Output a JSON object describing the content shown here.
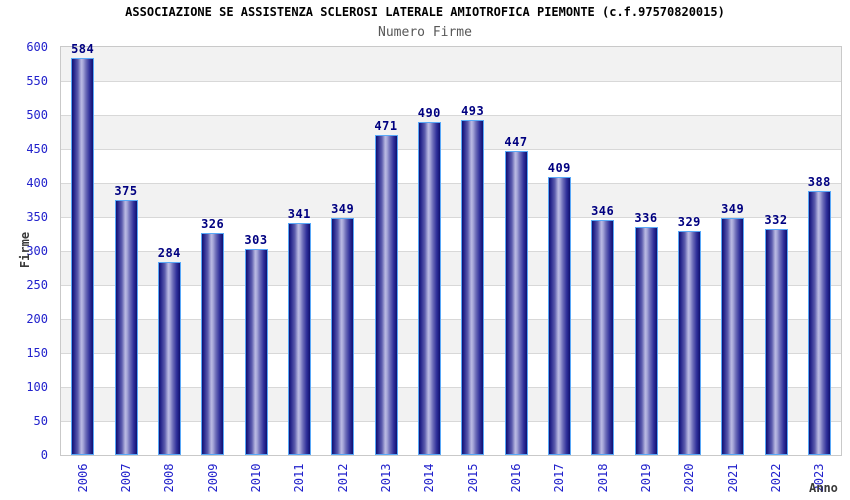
{
  "chart_data": {
    "type": "bar",
    "title": "ASSOCIAZIONE SE ASSISTENZA SCLEROSI LATERALE AMIOTROFICA PIEMONTE (c.f.97570820015)",
    "subtitle": "Numero Firme",
    "categories": [
      "2006",
      "2007",
      "2008",
      "2009",
      "2010",
      "2011",
      "2012",
      "2013",
      "2014",
      "2015",
      "2016",
      "2017",
      "2018",
      "2019",
      "2020",
      "2021",
      "2022",
      "2023"
    ],
    "values": [
      584,
      375,
      284,
      326,
      303,
      341,
      349,
      471,
      490,
      493,
      447,
      409,
      346,
      336,
      329,
      349,
      332,
      388
    ],
    "xlabel": "Anno",
    "ylabel": "Firme",
    "ylim": [
      0,
      600
    ],
    "yticks": [
      0,
      50,
      100,
      150,
      200,
      250,
      300,
      350,
      400,
      450,
      500,
      550,
      600
    ],
    "grid": "horizontal gridlines with alternating gray/white bands",
    "legend": "none"
  },
  "colors": {
    "bar_fill_dark": "#101070",
    "bar_fill_light": "#b9b9e2",
    "bar_outline": "#58a8f8",
    "value_label": "#000080",
    "tick_label": "#2222cc",
    "axis_title": "#3a3a3a",
    "subtitle_text": "#585858",
    "band": "#f2f2f2",
    "gridline": "#d8d8d8",
    "background": "#ffffff"
  }
}
